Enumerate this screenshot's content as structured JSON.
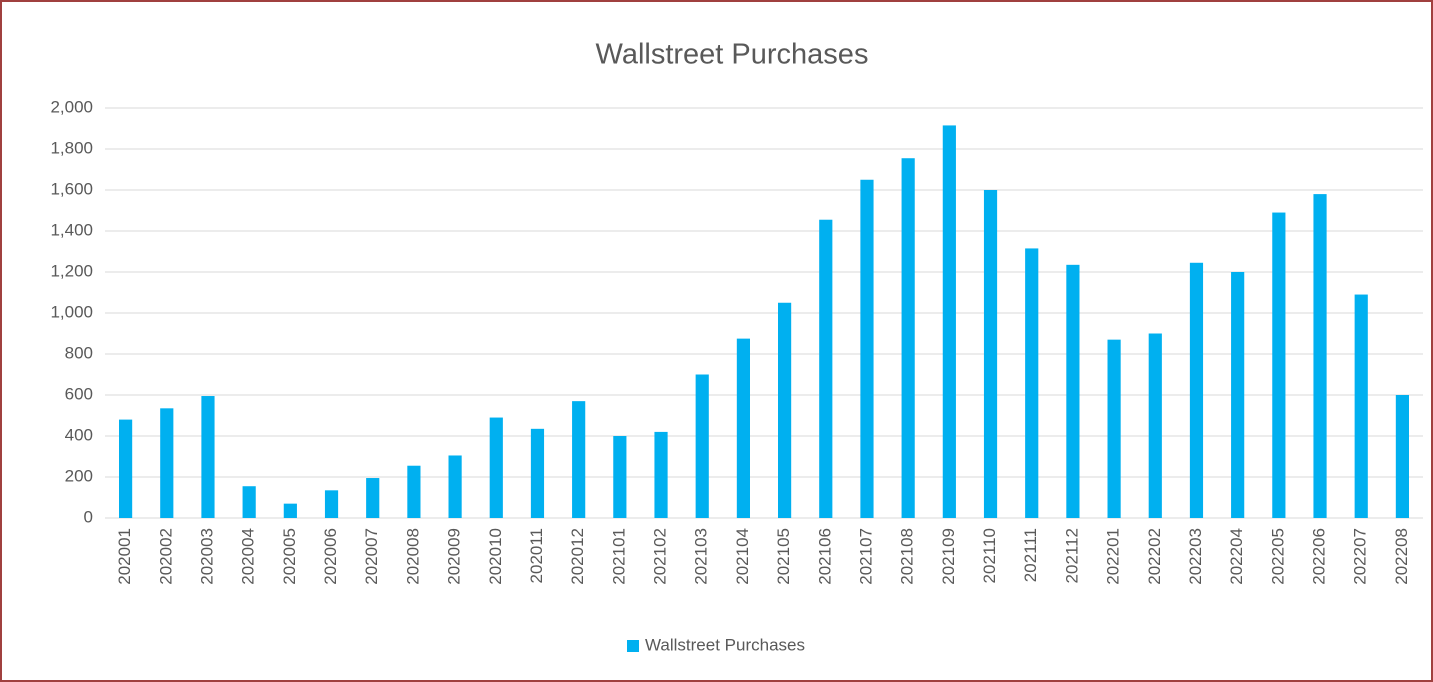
{
  "chart_data": {
    "type": "bar",
    "title": "Wallstreet Purchases",
    "categories": [
      "202001",
      "202002",
      "202003",
      "202004",
      "202005",
      "202006",
      "202007",
      "202008",
      "202009",
      "202010",
      "202011",
      "202012",
      "202101",
      "202102",
      "202103",
      "202104",
      "202105",
      "202106",
      "202107",
      "202108",
      "202109",
      "202110",
      "202111",
      "202112",
      "202201",
      "202202",
      "202203",
      "202204",
      "202205",
      "202206",
      "202207",
      "202208"
    ],
    "series": [
      {
        "name": "Wallstreet Purchases",
        "color": "#00b0f0",
        "values": [
          480,
          535,
          595,
          155,
          70,
          135,
          195,
          255,
          305,
          490,
          435,
          570,
          400,
          420,
          700,
          875,
          1050,
          1455,
          1650,
          1755,
          1915,
          1600,
          1315,
          1235,
          870,
          900,
          1245,
          1200,
          1490,
          1580,
          1090,
          600
        ]
      }
    ],
    "ylim": [
      0,
      2000
    ],
    "yticks": [
      0,
      200,
      400,
      600,
      800,
      {
        "value": 1000,
        "label": "1,000"
      },
      {
        "value": 1200,
        "label": "1,200"
      },
      {
        "value": 1400,
        "label": "1,400"
      },
      {
        "value": 1600,
        "label": "1,600"
      },
      {
        "value": 1800,
        "label": "1,800"
      },
      {
        "value": 2000,
        "label": "2,000"
      }
    ],
    "grid": true,
    "legend": "bottom"
  }
}
